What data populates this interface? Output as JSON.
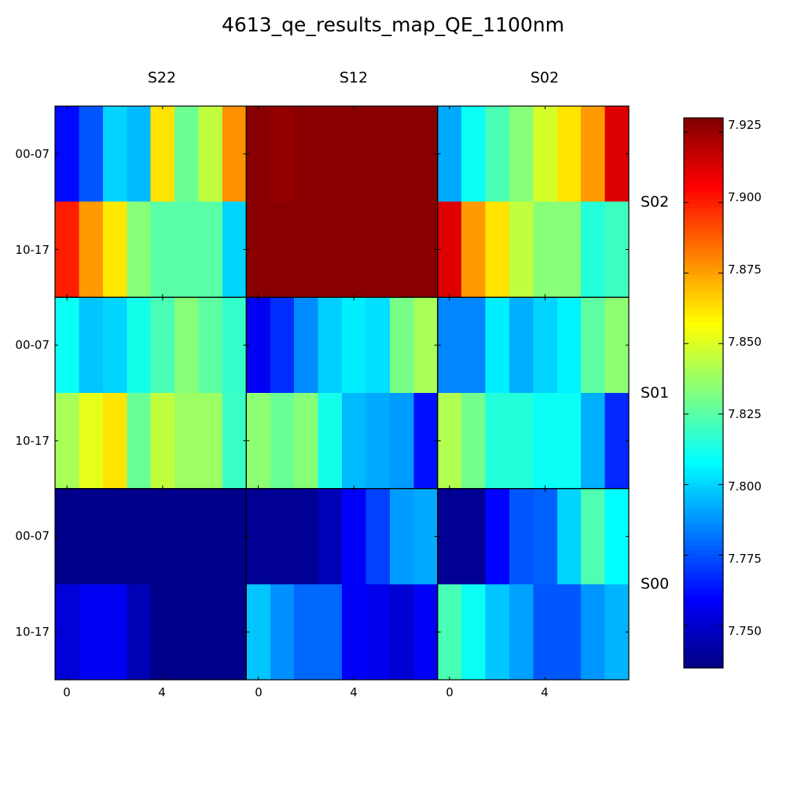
{
  "chart_data": {
    "type": "heatmap",
    "title": "4613_qe_results_map_QE_1100nm",
    "column_groups": [
      "S22",
      "S12",
      "S02"
    ],
    "row_groups": [
      "S02",
      "S01",
      "S00"
    ],
    "row_tick_labels": [
      "00-07",
      "10-17"
    ],
    "column_tick_labels": [
      "0",
      "4"
    ],
    "colorbar": {
      "colormap": "jet",
      "range": [
        7.735,
        7.93
      ],
      "ticks": [
        "7.750",
        "7.775",
        "7.800",
        "7.825",
        "7.850",
        "7.875",
        "7.900",
        "7.925"
      ]
    },
    "grid": [
      [
        [
          7.761,
          7.776,
          7.8,
          7.795,
          7.862,
          7.829,
          7.845,
          7.878
        ],
        [
          7.928,
          7.926,
          7.928,
          7.928,
          7.928,
          7.928,
          7.928,
          7.928
        ],
        [
          7.792,
          7.81,
          7.822,
          7.834,
          7.849,
          7.862,
          7.876,
          7.912
        ]
      ],
      [
        [
          7.9,
          7.876,
          7.861,
          7.834,
          7.825,
          7.825,
          7.825,
          7.8
        ],
        [
          7.928,
          7.928,
          7.928,
          7.928,
          7.928,
          7.928,
          7.928,
          7.928
        ],
        [
          7.912,
          7.876,
          7.862,
          7.845,
          7.834,
          7.834,
          7.815,
          7.82
        ]
      ],
      [
        [
          7.81,
          7.797,
          7.8,
          7.812,
          7.822,
          7.834,
          7.826,
          7.818
        ],
        [
          7.757,
          7.768,
          7.786,
          7.799,
          7.805,
          7.802,
          7.831,
          7.84
        ],
        [
          7.785,
          7.785,
          7.805,
          7.793,
          7.8,
          7.806,
          7.826,
          7.835
        ]
      ],
      [
        [
          7.84,
          7.852,
          7.862,
          7.828,
          7.845,
          7.838,
          7.838,
          7.819
        ],
        [
          7.835,
          7.828,
          7.834,
          7.812,
          7.795,
          7.792,
          7.789,
          7.762
        ],
        [
          7.842,
          7.83,
          7.815,
          7.815,
          7.81,
          7.81,
          7.793,
          7.767
        ]
      ],
      [
        [
          7.737,
          7.737,
          7.737,
          7.737,
          7.737,
          7.737,
          7.737,
          7.737
        ],
        [
          7.739,
          7.739,
          7.739,
          7.746,
          7.758,
          7.772,
          7.789,
          7.792
        ],
        [
          7.739,
          7.739,
          7.76,
          7.776,
          7.778,
          7.8,
          7.823,
          7.808
        ]
      ],
      [
        [
          7.752,
          7.757,
          7.757,
          7.745,
          7.737,
          7.737,
          7.737,
          7.737
        ],
        [
          7.797,
          7.787,
          7.779,
          7.779,
          7.758,
          7.756,
          7.751,
          7.758
        ],
        [
          7.822,
          7.81,
          7.797,
          7.79,
          7.776,
          7.776,
          7.788,
          7.794
        ]
      ]
    ]
  }
}
